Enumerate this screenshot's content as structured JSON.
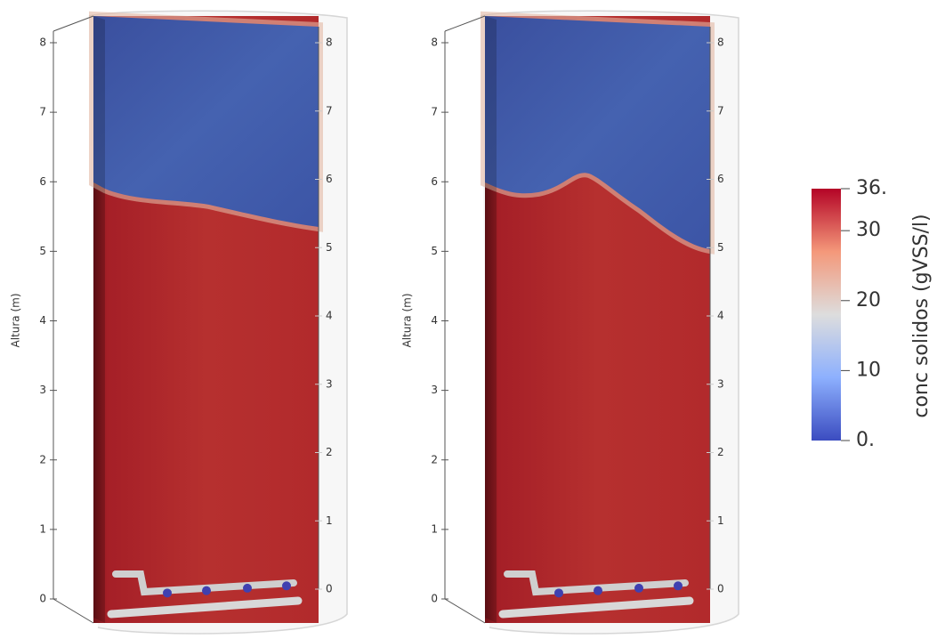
{
  "panels": [
    {
      "axis_label": "Altura (m)",
      "ylim": [
        0,
        8
      ],
      "yticks": [
        0,
        1,
        2,
        3,
        4,
        5,
        6,
        7,
        8
      ]
    },
    {
      "axis_label": "Altura (m)",
      "ylim": [
        0,
        8
      ],
      "yticks": [
        0,
        1,
        2,
        3,
        4,
        5,
        6,
        7,
        8
      ]
    }
  ],
  "colorbar": {
    "title": "conc solidos (gVSS/l)",
    "lim": [
      0,
      36
    ],
    "ticks": [
      {
        "value": 0,
        "label": "0."
      },
      10,
      20,
      30,
      {
        "value": 36,
        "label": "36."
      }
    ]
  }
}
